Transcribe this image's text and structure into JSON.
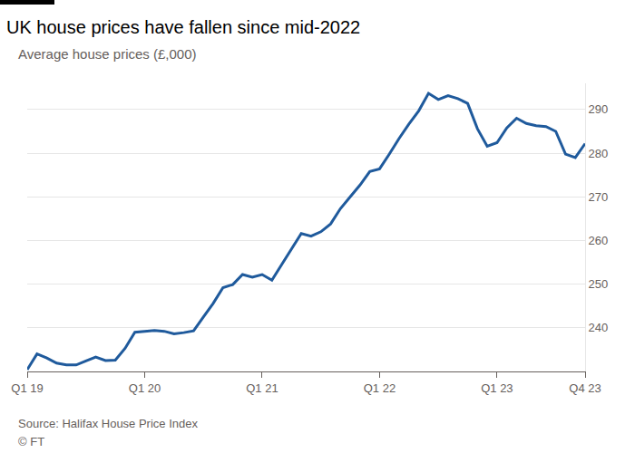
{
  "chart_data": {
    "type": "line",
    "title": "UK house prices have fallen since mid-2022",
    "subtitle": "Average house prices (£,000)",
    "annotations": [
      "Source: Halifax House Price Index",
      "© FT"
    ],
    "categories": [
      "Q1 19",
      null,
      null,
      null,
      null,
      null,
      null,
      null,
      null,
      null,
      null,
      null,
      "Q1 20",
      null,
      null,
      null,
      null,
      null,
      null,
      null,
      null,
      null,
      null,
      null,
      "Q1 21",
      null,
      null,
      null,
      null,
      null,
      null,
      null,
      null,
      null,
      null,
      null,
      "Q1 22",
      null,
      null,
      null,
      null,
      null,
      null,
      null,
      null,
      null,
      null,
      null,
      "Q1 23",
      null,
      null,
      null,
      null,
      null,
      null,
      null,
      null,
      "Q4 23"
    ],
    "values": [
      230.4,
      234.0,
      233.1,
      231.9,
      231.5,
      231.5,
      232.4,
      233.3,
      232.5,
      232.6,
      235.3,
      239.0,
      239.2,
      239.4,
      239.2,
      238.6,
      238.9,
      239.3,
      242.5,
      245.6,
      249.2,
      249.9,
      252.2,
      251.6,
      252.2,
      250.9,
      254.5,
      258.2,
      261.6,
      261.0,
      262.0,
      263.8,
      267.3,
      270.0,
      272.7,
      275.8,
      276.4,
      279.8,
      283.4,
      286.7,
      289.7,
      293.7,
      292.3,
      293.2,
      292.5,
      291.4,
      285.6,
      281.6,
      282.4,
      285.8,
      288.0,
      286.8,
      286.3,
      286.1,
      285.0,
      279.8,
      279.0,
      282.2
    ],
    "color": "#1f5a9c",
    "ylim": [
      230,
      296
    ],
    "yticks": [
      240,
      250,
      260,
      270,
      280,
      290
    ],
    "grid": true
  }
}
